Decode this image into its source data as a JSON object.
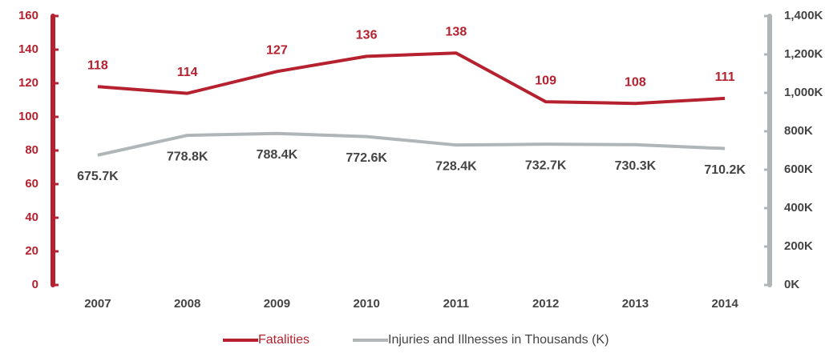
{
  "chart_data": {
    "type": "line",
    "categories": [
      "2007",
      "2008",
      "2009",
      "2010",
      "2011",
      "2012",
      "2013",
      "2014"
    ],
    "series": [
      {
        "name": "Fatalities",
        "color": "#b5212e",
        "values": [
          118,
          114,
          127,
          136,
          138,
          109,
          108,
          111
        ]
      },
      {
        "name": "Injuries and Illnesses in Thousands (K)",
        "color": "#b0b5b8",
        "axis": "y2",
        "values": [
          675.7,
          778.8,
          788.4,
          772.6,
          728.4,
          732.7,
          730.3,
          710.2
        ],
        "value_labels": [
          "675.7K",
          "778.8K",
          "788.4K",
          "772.6K",
          "728.4K",
          "732.7K",
          "730.3K",
          "710.2K"
        ]
      }
    ],
    "ylim": [
      0,
      160
    ],
    "yticks": [
      0,
      20,
      40,
      60,
      80,
      100,
      120,
      140,
      160
    ],
    "y2lim": [
      0,
      1400
    ],
    "y2ticks": [
      {
        "value": 0,
        "label": "0K"
      },
      {
        "value": 200,
        "label": "200K"
      },
      {
        "value": 400,
        "label": "400K"
      },
      {
        "value": 600,
        "label": "600K"
      },
      {
        "value": 800,
        "label": "800K"
      },
      {
        "value": 1000,
        "label": "1,000K"
      },
      {
        "value": 1200,
        "label": "1,200K"
      },
      {
        "value": 1400,
        "label": "1,400K"
      }
    ],
    "legend": "bottom"
  }
}
